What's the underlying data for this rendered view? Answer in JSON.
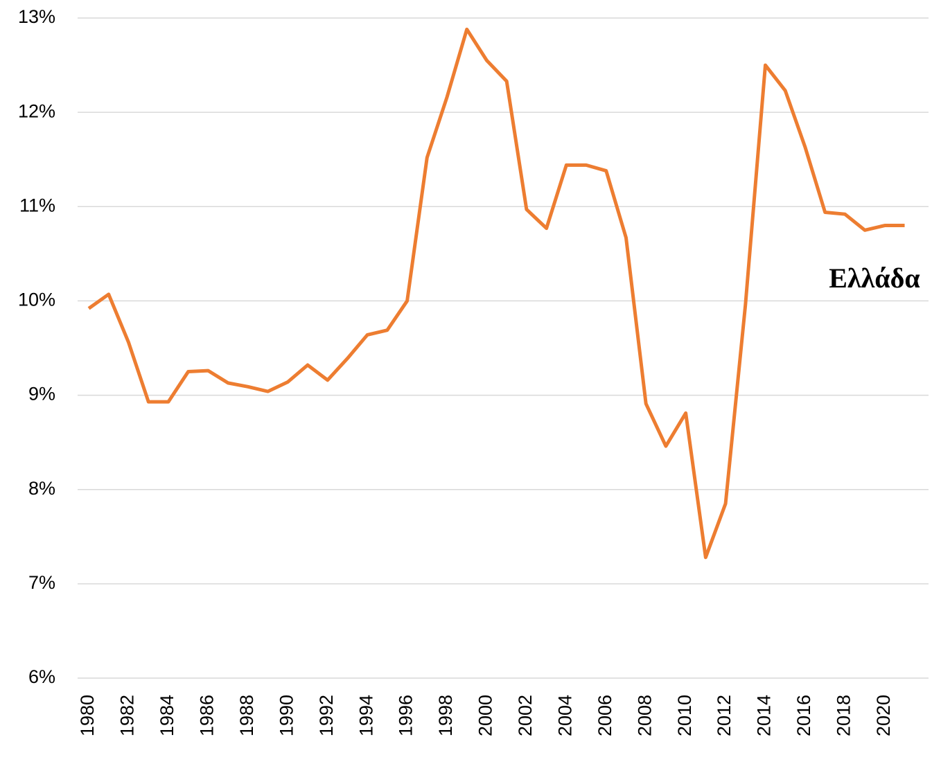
{
  "chart_data": {
    "type": "line",
    "x": [
      1980,
      1981,
      1982,
      1983,
      1984,
      1985,
      1986,
      1987,
      1988,
      1989,
      1990,
      1991,
      1992,
      1993,
      1994,
      1995,
      1996,
      1997,
      1998,
      1999,
      2000,
      2001,
      2002,
      2003,
      2004,
      2005,
      2006,
      2007,
      2008,
      2009,
      2010,
      2011,
      2012,
      2013,
      2014,
      2015,
      2016,
      2017,
      2018,
      2019,
      2020,
      2021
    ],
    "series": [
      {
        "name": "Ελλάδα",
        "color": "#ED7D31",
        "values": [
          9.92,
          10.07,
          9.56,
          8.93,
          8.93,
          9.25,
          9.26,
          9.13,
          9.09,
          9.04,
          9.14,
          9.32,
          9.16,
          9.39,
          9.64,
          9.69,
          10.0,
          11.52,
          12.16,
          12.88,
          12.55,
          12.33,
          10.97,
          10.77,
          11.44,
          11.44,
          11.38,
          10.67,
          8.91,
          8.46,
          8.81,
          7.28,
          7.85,
          9.96,
          12.5,
          12.23,
          11.63,
          10.94,
          10.92,
          10.75,
          10.8,
          10.8
        ]
      }
    ],
    "xlim": [
      1979.44,
      2022.2
    ],
    "xticks": [
      1980,
      1982,
      1984,
      1986,
      1988,
      1990,
      1992,
      1994,
      1996,
      1998,
      2000,
      2002,
      2004,
      2006,
      2008,
      2010,
      2012,
      2014,
      2016,
      2018,
      2020
    ],
    "ylim": [
      6,
      13
    ],
    "yticks": [
      {
        "value": 6,
        "label": "6%"
      },
      {
        "value": 7,
        "label": "7%"
      },
      {
        "value": 8,
        "label": "8%"
      },
      {
        "value": 9,
        "label": "9%"
      },
      {
        "value": 10,
        "label": "10%"
      },
      {
        "value": 11,
        "label": "11%"
      },
      {
        "value": 12,
        "label": "12%"
      },
      {
        "value": 13,
        "label": "13%"
      }
    ],
    "grid": true
  }
}
